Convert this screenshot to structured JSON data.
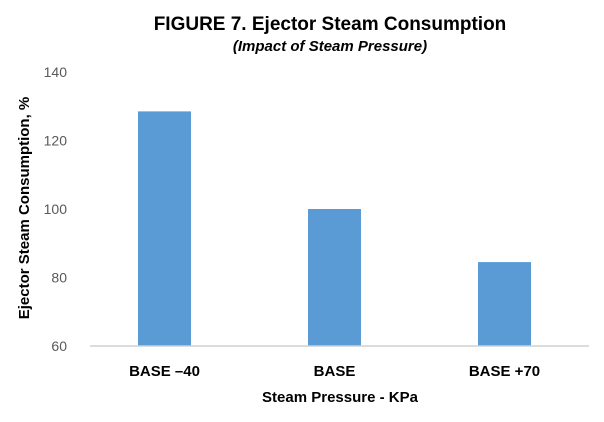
{
  "chart_data": {
    "type": "bar",
    "title": "FIGURE 7. Ejector Steam Consumption",
    "subtitle": "(Impact of Steam Pressure)",
    "xlabel": "Steam Pressure - KPa",
    "ylabel": "Ejector Steam Consumption, %",
    "categories": [
      "BASE –40",
      "BASE",
      "BASE +70"
    ],
    "values": [
      128.5,
      100,
      84.5
    ],
    "ylim": [
      60,
      140
    ],
    "yticks": [
      "60",
      "80",
      "100",
      "120",
      "140"
    ],
    "grid": false,
    "bar_color": "#5B9BD5"
  }
}
